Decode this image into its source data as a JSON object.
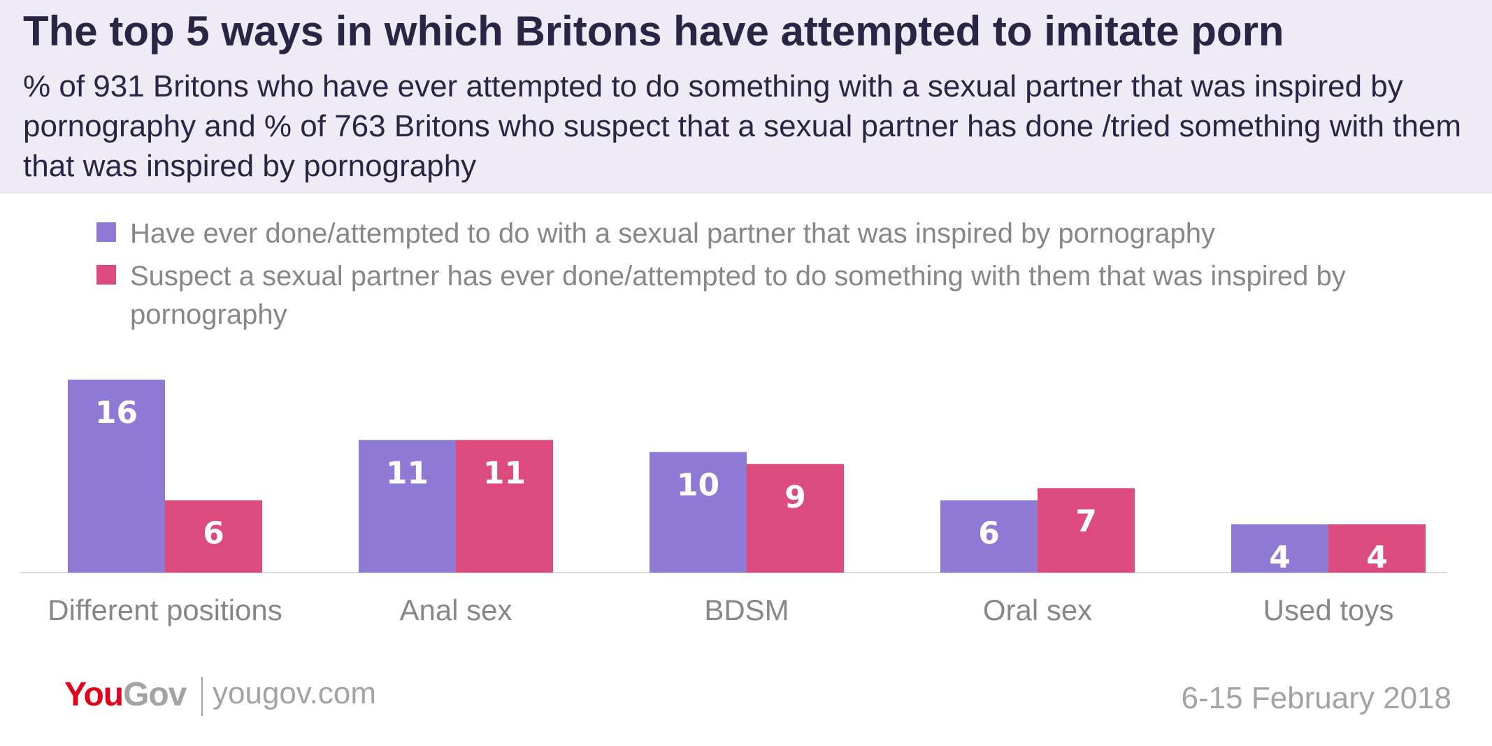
{
  "header": {
    "title": "The top 5 ways in which Britons have attempted to imitate porn",
    "subtitle": "% of 931 Britons who have ever attempted to do something with a sexual partner that was inspired by pornography and % of 763 Britons who suspect that a sexual partner has done /tried something with them that was inspired by pornography"
  },
  "chart_data": {
    "type": "bar",
    "categories": [
      "Different positions",
      "Anal sex",
      "BDSM",
      "Oral sex",
      "Used toys"
    ],
    "series": [
      {
        "name": "Have ever done/attempted to do with a sexual partner that was inspired by pornography",
        "color": "#8e79d4",
        "values": [
          16,
          11,
          10,
          6,
          4
        ]
      },
      {
        "name": "Suspect a sexual partner has ever done/attempted to do something with them that was inspired by pornography",
        "color": "#dc4a7e",
        "values": [
          6,
          11,
          9,
          7,
          4
        ]
      }
    ],
    "ylim": [
      0,
      16
    ],
    "legend_position": "top-left",
    "grid": false
  },
  "footer": {
    "logo_you": "You",
    "logo_gov": "Gov",
    "site": "yougov.com",
    "date": "6-15 February 2018"
  }
}
